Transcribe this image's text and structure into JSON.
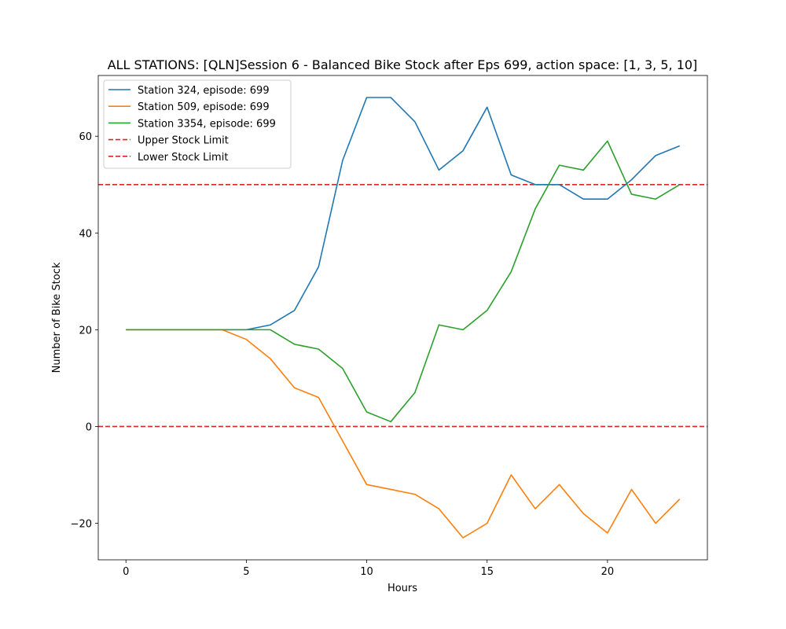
{
  "chart_data": {
    "type": "line",
    "title": "ALL STATIONS: [QLN]Session 6 - Balanced Bike Stock after Eps 699, action space: [1, 3, 5, 10]",
    "xlabel": "Hours",
    "ylabel": "Number of Bike Stock",
    "xlim": [
      -1.15,
      24.15
    ],
    "ylim": [
      -27.55,
      72.55
    ],
    "xticks": [
      0,
      5,
      10,
      15,
      20
    ],
    "yticks": [
      -20,
      0,
      20,
      40,
      60
    ],
    "grid": false,
    "legend_position": "top-left",
    "x": [
      0,
      1,
      2,
      3,
      4,
      5,
      6,
      7,
      8,
      9,
      10,
      11,
      12,
      13,
      14,
      15,
      16,
      17,
      18,
      19,
      20,
      21,
      22,
      23
    ],
    "series": [
      {
        "name": "Station 324, episode: 699",
        "color": "#1f77b4",
        "values": [
          20,
          20,
          20,
          20,
          20,
          20,
          21,
          24,
          33,
          55,
          68,
          68,
          63,
          53,
          57,
          66,
          52,
          50,
          50,
          47,
          47,
          51,
          56,
          58
        ]
      },
      {
        "name": "Station 509, episode: 699",
        "color": "#ff7f0e",
        "values": [
          20,
          20,
          20,
          20,
          20,
          18,
          14,
          8,
          6,
          -3,
          -12,
          -13,
          -14,
          -17,
          -23,
          -20,
          -10,
          -17,
          -12,
          -18,
          -22,
          -13,
          -20,
          -15
        ]
      },
      {
        "name": "Station 3354, episode: 699",
        "color": "#2ca02c",
        "values": [
          20,
          20,
          20,
          20,
          20,
          20,
          20,
          17,
          16,
          12,
          3,
          1,
          7,
          21,
          20,
          24,
          32,
          45,
          54,
          53,
          59,
          48,
          47,
          50
        ]
      }
    ],
    "hlines": [
      {
        "name": "Upper Stock Limit",
        "y": 50,
        "color": "#d62728",
        "style": "dashed"
      },
      {
        "name": "Lower Stock Limit",
        "y": 0,
        "color": "#d62728",
        "style": "dashed"
      }
    ]
  }
}
